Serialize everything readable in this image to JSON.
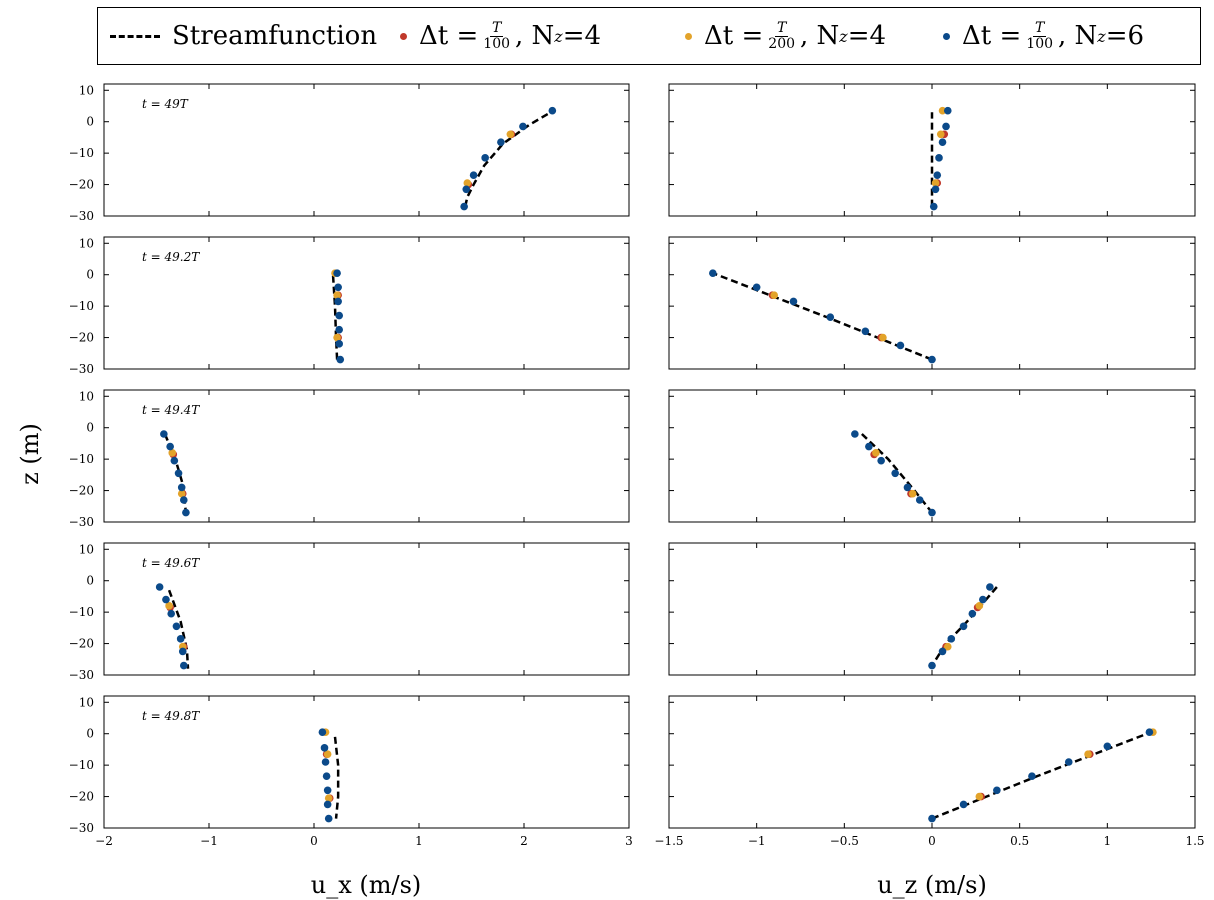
{
  "legend": [
    {
      "kind": "line",
      "text": "Streamfunction",
      "color": "#000000"
    },
    {
      "kind": "dot",
      "color": "#c0392b",
      "num": "T",
      "den": "100",
      "nz": "4"
    },
    {
      "kind": "dot",
      "color": "#e3a32a",
      "num": "T",
      "den": "200",
      "nz": "4"
    },
    {
      "kind": "dot",
      "color": "#0b4a8a",
      "num": "T",
      "den": "100",
      "nz": "6"
    }
  ],
  "legend_text": {
    "streamfunction": "Streamfunction",
    "dt": "Δt =",
    "nz_prefix": ", N",
    "nz_sub": "z",
    "eq": " = ",
    "s1_den": "100",
    "s1_nz": "4",
    "s2_den": "200",
    "s2_nz": "4",
    "s3_den": "100",
    "s3_nz": "6",
    "num": "T"
  },
  "colors": {
    "series_100_4": "#c0392b",
    "series_200_4": "#e3a32a",
    "series_100_6": "#0b4a8a",
    "streamfunction": "#000000"
  },
  "chart_data": {
    "type": "scatter",
    "ylabel": "z (m)",
    "xlabels": [
      "u_x (m/s)",
      "u_z (m/s)"
    ],
    "ylim": [
      -30,
      12
    ],
    "yticks": [
      10,
      0,
      -10,
      -20,
      -30
    ],
    "left_xlim": [
      -2,
      3
    ],
    "left_xticks": [
      -2,
      -1,
      0,
      1,
      2,
      3
    ],
    "right_xlim": [
      -1.5,
      1.5
    ],
    "right_xticks": [
      -1.5,
      -1,
      -0.5,
      0,
      0.5,
      1,
      1.5
    ],
    "time_labels": [
      "t = 49T",
      "t = 49.2T",
      "t = 49.4T",
      "t = 49.6T",
      "t = 49.8T"
    ],
    "series": [
      "Streamfunction",
      "Δt = T/100, Nz = 4",
      "Δt = T/200, Nz = 4",
      "Δt = T/100, Nz = 6"
    ],
    "rows": [
      {
        "ux": {
          "stream": [
            [
              1.44,
              -27
            ],
            [
              1.46,
              -24
            ],
            [
              1.52,
              -20
            ],
            [
              1.62,
              -14
            ],
            [
              1.8,
              -7
            ],
            [
              2.05,
              -1
            ],
            [
              2.28,
              3.5
            ]
          ],
          "nz6_100": [
            [
              1.43,
              -27
            ],
            [
              1.45,
              -21.5
            ],
            [
              1.52,
              -17
            ],
            [
              1.63,
              -11.5
            ],
            [
              1.78,
              -6.5
            ],
            [
              1.99,
              -1.5
            ],
            [
              2.27,
              3.5
            ]
          ],
          "nz4_200": [
            [
              1.46,
              -19.5
            ],
            [
              1.87,
              -4
            ]
          ],
          "nz4_100": [
            [
              1.47,
              -20
            ],
            [
              1.88,
              -4
            ]
          ]
        },
        "uz": {
          "stream": [
            [
              0.0,
              -27
            ],
            [
              0.0,
              -20
            ],
            [
              0.0,
              -10
            ],
            [
              0.0,
              3
            ]
          ],
          "nz6_100": [
            [
              0.01,
              -27
            ],
            [
              0.02,
              -21.5
            ],
            [
              0.03,
              -17
            ],
            [
              0.04,
              -11.5
            ],
            [
              0.06,
              -6.5
            ],
            [
              0.08,
              -1.5
            ],
            [
              0.09,
              3.5
            ]
          ],
          "nz4_200": [
            [
              0.02,
              -19.5
            ],
            [
              0.05,
              -4
            ],
            [
              0.06,
              3.5
            ]
          ],
          "nz4_100": [
            [
              0.03,
              -19.5
            ],
            [
              0.07,
              -4
            ]
          ]
        }
      },
      {
        "ux": {
          "stream": [
            [
              0.22,
              -27
            ],
            [
              0.21,
              -20
            ],
            [
              0.2,
              -10
            ],
            [
              0.18,
              0.5
            ]
          ],
          "nz6_100": [
            [
              0.25,
              -27
            ],
            [
              0.24,
              -22
            ],
            [
              0.24,
              -17.5
            ],
            [
              0.24,
              -13
            ],
            [
              0.23,
              -8.5
            ],
            [
              0.23,
              -4
            ],
            [
              0.22,
              0.5
            ]
          ],
          "nz4_200": [
            [
              0.22,
              -20
            ],
            [
              0.22,
              -6.5
            ],
            [
              0.2,
              0.5
            ]
          ],
          "nz4_100": [
            [
              0.23,
              -20
            ],
            [
              0.23,
              -6.5
            ]
          ]
        },
        "uz": {
          "stream": [
            [
              0.0,
              -27
            ],
            [
              -0.6,
              -13.5
            ],
            [
              -1.25,
              0.5
            ]
          ],
          "nz6_100": [
            [
              -1.25,
              0.5
            ],
            [
              -1.0,
              -4
            ],
            [
              -0.79,
              -8.5
            ],
            [
              -0.58,
              -13.5
            ],
            [
              -0.38,
              -18
            ],
            [
              -0.18,
              -22.5
            ],
            [
              0.0,
              -27
            ]
          ],
          "nz4_200": [
            [
              -0.9,
              -6.5
            ],
            [
              -0.28,
              -20
            ]
          ],
          "nz4_100": [
            [
              -0.91,
              -6.5
            ],
            [
              -0.29,
              -20
            ]
          ]
        }
      },
      {
        "ux": {
          "stream": [
            [
              -1.42,
              -2
            ],
            [
              -1.32,
              -10
            ],
            [
              -1.25,
              -18
            ],
            [
              -1.22,
              -27
            ]
          ],
          "nz6_100": [
            [
              -1.43,
              -2
            ],
            [
              -1.37,
              -6
            ],
            [
              -1.33,
              -10.5
            ],
            [
              -1.29,
              -14.5
            ],
            [
              -1.26,
              -19
            ],
            [
              -1.24,
              -23
            ],
            [
              -1.22,
              -27
            ]
          ],
          "nz4_200": [
            [
              -1.35,
              -8
            ],
            [
              -1.26,
              -21
            ]
          ],
          "nz4_100": [
            [
              -1.34,
              -8.5
            ],
            [
              -1.25,
              -21
            ]
          ]
        },
        "uz": {
          "stream": [
            [
              -0.4,
              -2
            ],
            [
              -0.25,
              -10
            ],
            [
              -0.1,
              -20
            ],
            [
              0.0,
              -27
            ]
          ],
          "nz6_100": [
            [
              -0.44,
              -2
            ],
            [
              -0.36,
              -6
            ],
            [
              -0.29,
              -10.5
            ],
            [
              -0.21,
              -14.5
            ],
            [
              -0.14,
              -19
            ],
            [
              -0.07,
              -23
            ],
            [
              0.0,
              -27
            ]
          ],
          "nz4_200": [
            [
              -0.32,
              -8
            ],
            [
              -0.11,
              -21
            ]
          ],
          "nz4_100": [
            [
              -0.33,
              -8.5
            ],
            [
              -0.12,
              -21
            ]
          ]
        }
      },
      {
        "ux": {
          "stream": [
            [
              -1.38,
              -3
            ],
            [
              -1.27,
              -13
            ],
            [
              -1.21,
              -22
            ],
            [
              -1.2,
              -28
            ]
          ],
          "nz6_100": [
            [
              -1.47,
              -2
            ],
            [
              -1.41,
              -6
            ],
            [
              -1.36,
              -10.5
            ],
            [
              -1.31,
              -14.5
            ],
            [
              -1.27,
              -18.5
            ],
            [
              -1.25,
              -22.5
            ],
            [
              -1.24,
              -27
            ]
          ],
          "nz4_200": [
            [
              -1.38,
              -8
            ],
            [
              -1.25,
              -21
            ]
          ],
          "nz4_100": [
            [
              -1.37,
              -8.5
            ],
            [
              -1.24,
              -21
            ]
          ]
        },
        "uz": {
          "stream": [
            [
              0.37,
              -2
            ],
            [
              0.2,
              -13
            ],
            [
              0.08,
              -20
            ],
            [
              0.0,
              -27
            ]
          ],
          "nz6_100": [
            [
              0.33,
              -2
            ],
            [
              0.29,
              -6
            ],
            [
              0.23,
              -10.5
            ],
            [
              0.18,
              -14.5
            ],
            [
              0.11,
              -18.5
            ],
            [
              0.06,
              -22.5
            ],
            [
              0.0,
              -27
            ]
          ],
          "nz4_200": [
            [
              0.27,
              -8
            ],
            [
              0.09,
              -21
            ]
          ],
          "nz4_100": [
            [
              0.26,
              -8.5
            ],
            [
              0.08,
              -21
            ]
          ]
        }
      },
      {
        "ux": {
          "stream": [
            [
              0.2,
              -1
            ],
            [
              0.23,
              -10
            ],
            [
              0.23,
              -20
            ],
            [
              0.21,
              -27
            ]
          ],
          "nz6_100": [
            [
              0.08,
              0.5
            ],
            [
              0.1,
              -4.5
            ],
            [
              0.11,
              -9
            ],
            [
              0.12,
              -13.5
            ],
            [
              0.13,
              -18
            ],
            [
              0.13,
              -22.5
            ],
            [
              0.14,
              -27
            ]
          ],
          "nz4_200": [
            [
              0.11,
              0.5
            ],
            [
              0.13,
              -6.5
            ],
            [
              0.14,
              -20.5
            ]
          ],
          "nz4_100": [
            [
              0.12,
              -6.5
            ],
            [
              0.15,
              -20.5
            ]
          ]
        },
        "uz": {
          "stream": [
            [
              0.0,
              -27
            ],
            [
              0.6,
              -13.5
            ],
            [
              1.25,
              0.5
            ]
          ],
          "nz6_100": [
            [
              0.0,
              -27
            ],
            [
              0.18,
              -22.5
            ],
            [
              0.37,
              -18
            ],
            [
              0.57,
              -13.5
            ],
            [
              0.78,
              -9
            ],
            [
              1.0,
              -4
            ],
            [
              1.24,
              0.5
            ]
          ],
          "nz4_200": [
            [
              0.27,
              -20
            ],
            [
              0.89,
              -6.5
            ],
            [
              1.26,
              0.5
            ]
          ],
          "nz4_100": [
            [
              0.28,
              -20
            ],
            [
              0.9,
              -6.5
            ]
          ]
        }
      }
    ]
  }
}
